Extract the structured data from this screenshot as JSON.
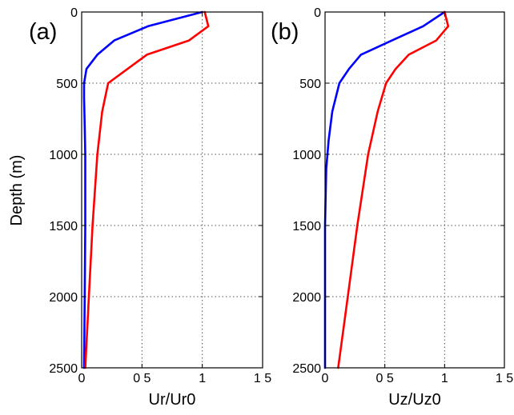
{
  "chart_data": [
    {
      "type": "line",
      "panel_label": "(a)",
      "xlabel": "Ur/Ur0",
      "ylabel": "Depth (m)",
      "xlim": [
        0,
        1.5
      ],
      "ylim": [
        2500,
        0
      ],
      "y_reversed": true,
      "grid": true,
      "x_tick_labels": [
        "0",
        "0.5",
        "1",
        "1.5"
      ],
      "x_tick_text": [
        "0",
        "0 5",
        "1",
        "1 5"
      ],
      "y_ticks": [
        0,
        500,
        1000,
        1500,
        2000,
        2500
      ],
      "y_tick_labels": [
        "0",
        "500",
        "1000",
        "1500",
        "2000",
        "2500"
      ],
      "series": [
        {
          "color": "#0000ff",
          "points": [
            [
              1.0,
              0
            ],
            [
              0.55,
              100
            ],
            [
              0.27,
              200
            ],
            [
              0.13,
              300
            ],
            [
              0.04,
              400
            ],
            [
              0.02,
              500
            ],
            [
              0.02,
              600
            ],
            [
              0.025,
              800
            ],
            [
              0.03,
              1000
            ],
            [
              0.03,
              1500
            ],
            [
              0.025,
              2000
            ],
            [
              0.02,
              2500
            ]
          ]
        },
        {
          "color": "#ff0000",
          "points": [
            [
              1.02,
              0
            ],
            [
              1.05,
              100
            ],
            [
              0.89,
              200
            ],
            [
              0.54,
              300
            ],
            [
              0.38,
              400
            ],
            [
              0.22,
              500
            ],
            [
              0.17,
              700
            ],
            [
              0.13,
              1000
            ],
            [
              0.09,
              1500
            ],
            [
              0.06,
              2000
            ],
            [
              0.03,
              2500
            ]
          ]
        }
      ]
    },
    {
      "type": "line",
      "panel_label": "(b)",
      "xlabel": "Uz/Uz0",
      "ylabel": "",
      "xlim": [
        0,
        1.5
      ],
      "ylim": [
        2500,
        0
      ],
      "y_reversed": true,
      "grid": true,
      "x_tick_labels": [
        "0",
        "0.5",
        "1",
        "1.5"
      ],
      "x_tick_text": [
        "0",
        "0 5",
        "1",
        "1 5"
      ],
      "y_ticks": [
        0,
        500,
        1000,
        1500,
        2000,
        2500
      ],
      "y_tick_labels": [
        "0",
        "500",
        "1000",
        "1500",
        "2000",
        "2500"
      ],
      "series": [
        {
          "color": "#0000ff",
          "points": [
            [
              1.0,
              0
            ],
            [
              0.82,
              100
            ],
            [
              0.56,
              200
            ],
            [
              0.3,
              300
            ],
            [
              0.2,
              400
            ],
            [
              0.12,
              500
            ],
            [
              0.06,
              700
            ],
            [
              0.03,
              900
            ],
            [
              0.01,
              1100
            ],
            [
              0.0,
              1500
            ],
            [
              0.0,
              2000
            ],
            [
              0.0,
              2500
            ]
          ]
        },
        {
          "color": "#ff0000",
          "points": [
            [
              1.0,
              0
            ],
            [
              1.03,
              100
            ],
            [
              0.93,
              200
            ],
            [
              0.7,
              300
            ],
            [
              0.59,
              400
            ],
            [
              0.51,
              500
            ],
            [
              0.44,
              700
            ],
            [
              0.36,
              1000
            ],
            [
              0.27,
              1500
            ],
            [
              0.19,
              2000
            ],
            [
              0.11,
              2500
            ]
          ]
        }
      ]
    }
  ]
}
